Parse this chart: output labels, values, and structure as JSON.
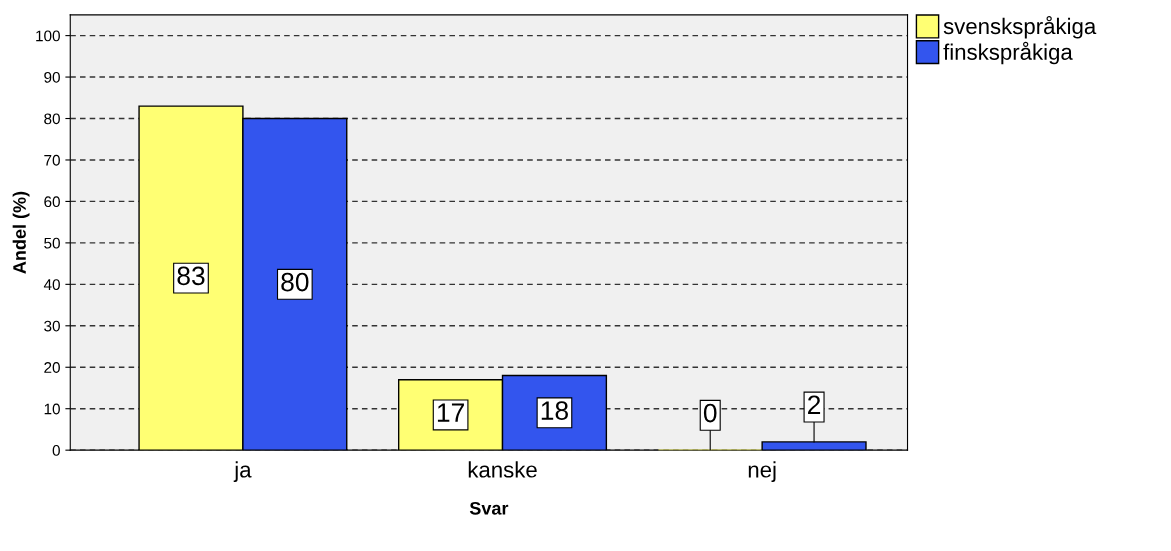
{
  "chart_data": {
    "type": "bar",
    "xlabel": "Svar",
    "ylabel": "Andel (%)",
    "categories": [
      "ja",
      "kanske",
      "nej"
    ],
    "series": [
      {
        "name": "svenskspråkiga",
        "color": "#ffff73",
        "values": [
          83,
          17,
          0
        ]
      },
      {
        "name": "finskspråkiga",
        "color": "#3355ee",
        "values": [
          80,
          18,
          2
        ]
      }
    ],
    "ylim": [
      0,
      105
    ],
    "yticks": [
      0,
      10,
      20,
      30,
      40,
      50,
      60,
      70,
      80,
      90,
      100
    ],
    "grid": "y",
    "legend": "top right",
    "data_labels": true
  }
}
